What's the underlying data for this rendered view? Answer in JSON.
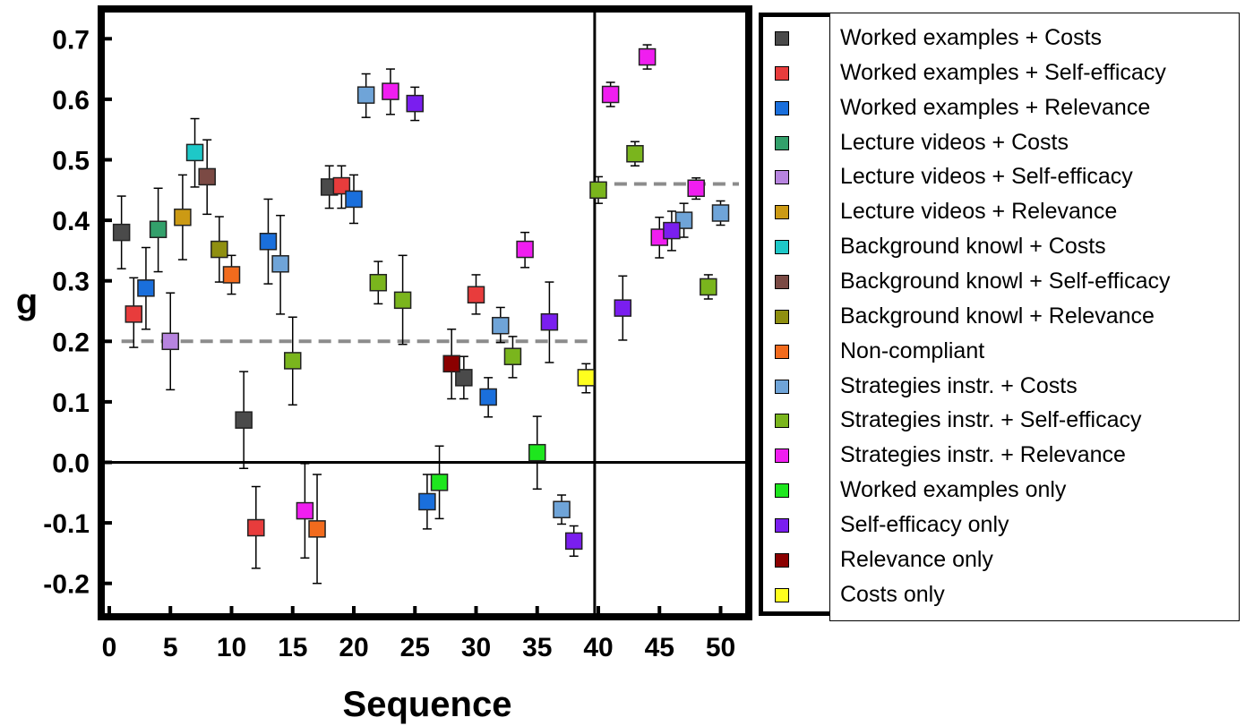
{
  "chart_data": {
    "type": "scatter",
    "xlabel": "Sequence",
    "ylabel": "g",
    "xlim": [
      -1,
      52.5
    ],
    "ylim": [
      -0.255,
      0.755
    ],
    "xticks": [
      "0",
      "5",
      "10",
      "15",
      "20",
      "25",
      "30",
      "35",
      "40",
      "45",
      "50"
    ],
    "yticks": [
      "-0.2",
      "-0.1",
      "0.0",
      "0.1",
      "0.2",
      "0.3",
      "0.4",
      "0.5",
      "0.6",
      "0.7"
    ],
    "vertical_line_x": 39.7,
    "horizontal_zero_line": true,
    "reference_lines": [
      {
        "x_from": 1,
        "x_to": 39.5,
        "y": 0.2
      },
      {
        "x_from": 39.7,
        "x_to": 51.5,
        "y": 0.46
      }
    ],
    "legend_position": "right, outside plot",
    "grid": false,
    "series": [
      {
        "name": "Worked examples + Costs",
        "color": "#4a4a4a",
        "points": [
          {
            "x": 1,
            "y": 0.38,
            "lo": 0.32,
            "hi": 0.44
          },
          {
            "x": 11,
            "y": 0.07,
            "lo": -0.01,
            "hi": 0.15
          },
          {
            "x": 18,
            "y": 0.455,
            "lo": 0.42,
            "hi": 0.49
          },
          {
            "x": 29,
            "y": 0.14,
            "lo": 0.105,
            "hi": 0.175
          }
        ]
      },
      {
        "name": "Worked examples + Self-efficacy",
        "color": "#e83c3c",
        "points": [
          {
            "x": 2,
            "y": 0.245,
            "lo": 0.19,
            "hi": 0.305
          },
          {
            "x": 12,
            "y": -0.108,
            "lo": -0.175,
            "hi": -0.04
          },
          {
            "x": 19,
            "y": 0.457,
            "lo": 0.42,
            "hi": 0.49
          },
          {
            "x": 30,
            "y": 0.277,
            "lo": 0.245,
            "hi": 0.31
          }
        ]
      },
      {
        "name": "Worked examples + Relevance",
        "color": "#1a6fdc",
        "points": [
          {
            "x": 3,
            "y": 0.288,
            "lo": 0.22,
            "hi": 0.355
          },
          {
            "x": 13,
            "y": 0.365,
            "lo": 0.295,
            "hi": 0.435
          },
          {
            "x": 20,
            "y": 0.435,
            "lo": 0.395,
            "hi": 0.475
          },
          {
            "x": 26,
            "y": -0.065,
            "lo": -0.11,
            "hi": -0.02
          },
          {
            "x": 31,
            "y": 0.108,
            "lo": 0.075,
            "hi": 0.14
          }
        ]
      },
      {
        "name": "Lecture videos + Costs",
        "color": "#33a06b",
        "points": [
          {
            "x": 4,
            "y": 0.385,
            "lo": 0.315,
            "hi": 0.453
          }
        ]
      },
      {
        "name": "Lecture videos + Self-efficacy",
        "color": "#b784df",
        "points": [
          {
            "x": 5,
            "y": 0.2,
            "lo": 0.12,
            "hi": 0.28
          }
        ]
      },
      {
        "name": "Lecture videos + Relevance",
        "color": "#cc9a14",
        "points": [
          {
            "x": 6,
            "y": 0.405,
            "lo": 0.335,
            "hi": 0.475
          }
        ]
      },
      {
        "name": "Background knowl + Costs",
        "color": "#1ec8c8",
        "points": [
          {
            "x": 7,
            "y": 0.512,
            "lo": 0.455,
            "hi": 0.568
          }
        ]
      },
      {
        "name": "Background knowl + Self-efficacy",
        "color": "#7b4a44",
        "points": [
          {
            "x": 8,
            "y": 0.472,
            "lo": 0.41,
            "hi": 0.533
          }
        ]
      },
      {
        "name": "Background knowl + Relevance",
        "color": "#8f8f10",
        "points": [
          {
            "x": 9,
            "y": 0.352,
            "lo": 0.298,
            "hi": 0.406
          }
        ]
      },
      {
        "name": "Non-compliant",
        "color": "#f26b1d",
        "points": [
          {
            "x": 10,
            "y": 0.31,
            "lo": 0.278,
            "hi": 0.342
          },
          {
            "x": 17,
            "y": -0.11,
            "lo": -0.2,
            "hi": -0.02
          }
        ]
      },
      {
        "name": "Strategies instr. + Costs",
        "color": "#6fa4d8",
        "points": [
          {
            "x": 14,
            "y": 0.328,
            "lo": 0.245,
            "hi": 0.408
          },
          {
            "x": 21,
            "y": 0.607,
            "lo": 0.57,
            "hi": 0.642
          },
          {
            "x": 32,
            "y": 0.226,
            "lo": 0.198,
            "hi": 0.256
          },
          {
            "x": 37,
            "y": -0.078,
            "lo": -0.102,
            "hi": -0.054
          },
          {
            "x": 47,
            "y": 0.4,
            "lo": 0.372,
            "hi": 0.428
          },
          {
            "x": 50,
            "y": 0.412,
            "lo": 0.392,
            "hi": 0.432
          }
        ]
      },
      {
        "name": "Strategies instr. + Self-efficacy",
        "color": "#7ab51d",
        "points": [
          {
            "x": 15,
            "y": 0.168,
            "lo": 0.095,
            "hi": 0.24
          },
          {
            "x": 22,
            "y": 0.297,
            "lo": 0.262,
            "hi": 0.332
          },
          {
            "x": 24,
            "y": 0.268,
            "lo": 0.195,
            "hi": 0.342
          },
          {
            "x": 33,
            "y": 0.175,
            "lo": 0.14,
            "hi": 0.208
          },
          {
            "x": 40,
            "y": 0.45,
            "lo": 0.428,
            "hi": 0.472
          },
          {
            "x": 43,
            "y": 0.51,
            "lo": 0.49,
            "hi": 0.53
          },
          {
            "x": 49,
            "y": 0.29,
            "lo": 0.27,
            "hi": 0.31
          }
        ]
      },
      {
        "name": "Strategies instr. + Relevance",
        "color": "#f01ef0",
        "points": [
          {
            "x": 16,
            "y": -0.08,
            "lo": -0.158,
            "hi": -0.002
          },
          {
            "x": 23,
            "y": 0.613,
            "lo": 0.575,
            "hi": 0.65
          },
          {
            "x": 34,
            "y": 0.352,
            "lo": 0.322,
            "hi": 0.38
          },
          {
            "x": 41,
            "y": 0.608,
            "lo": 0.588,
            "hi": 0.628
          },
          {
            "x": 44,
            "y": 0.67,
            "lo": 0.65,
            "hi": 0.69
          },
          {
            "x": 45,
            "y": 0.372,
            "lo": 0.338,
            "hi": 0.405
          },
          {
            "x": 48,
            "y": 0.453,
            "lo": 0.435,
            "hi": 0.47
          }
        ]
      },
      {
        "name": "Worked examples only",
        "color": "#1ee61e",
        "points": [
          {
            "x": 27,
            "y": -0.033,
            "lo": -0.093,
            "hi": 0.027
          },
          {
            "x": 35,
            "y": 0.016,
            "lo": -0.044,
            "hi": 0.076
          }
        ]
      },
      {
        "name": "Self-efficacy only",
        "color": "#7a1eef",
        "points": [
          {
            "x": 25,
            "y": 0.593,
            "lo": 0.565,
            "hi": 0.62
          },
          {
            "x": 36,
            "y": 0.232,
            "lo": 0.165,
            "hi": 0.298
          },
          {
            "x": 38,
            "y": -0.13,
            "lo": -0.155,
            "hi": -0.105
          },
          {
            "x": 42,
            "y": 0.255,
            "lo": 0.202,
            "hi": 0.308
          },
          {
            "x": 46,
            "y": 0.383,
            "lo": 0.35,
            "hi": 0.415
          }
        ]
      },
      {
        "name": "Relevance only",
        "color": "#8b0000",
        "points": [
          {
            "x": 28,
            "y": 0.163,
            "lo": 0.105,
            "hi": 0.22
          }
        ]
      },
      {
        "name": "Costs only",
        "color": "#ffff1e",
        "points": [
          {
            "x": 39,
            "y": 0.14,
            "lo": 0.115,
            "hi": 0.163
          }
        ]
      }
    ]
  }
}
